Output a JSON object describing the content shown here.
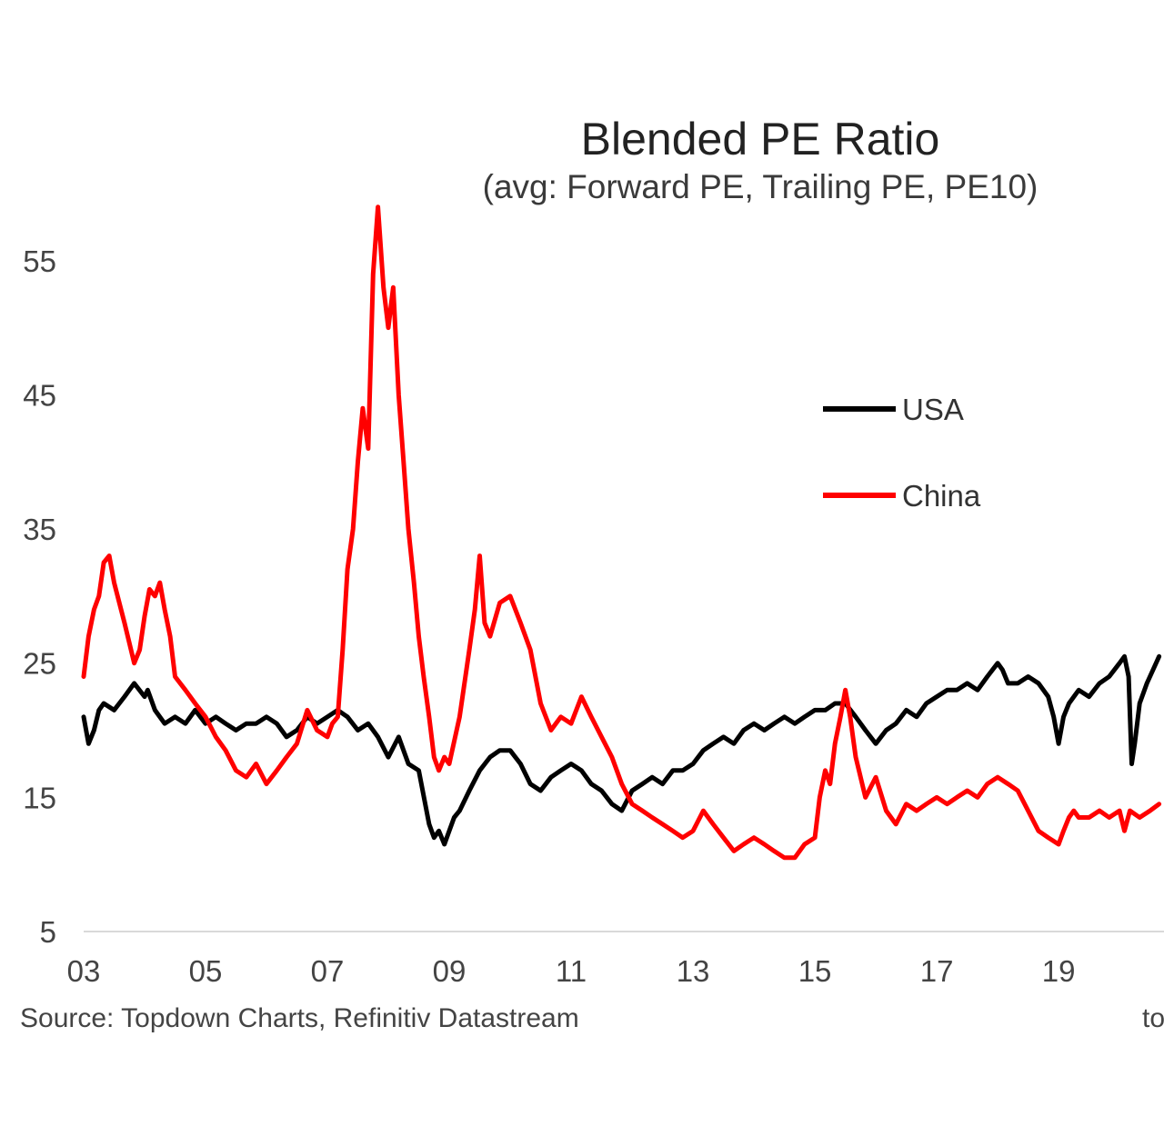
{
  "chart_data": {
    "type": "line",
    "title": "Blended PE Ratio",
    "subtitle": "(avg: Forward PE, Trailing PE, PE10)",
    "xlabel": "",
    "ylabel": "",
    "xlim": [
      2003.0,
      2020.7
    ],
    "ylim": [
      5,
      60
    ],
    "x_ticks": [
      {
        "value": 2003,
        "label": "03"
      },
      {
        "value": 2005,
        "label": "05"
      },
      {
        "value": 2007,
        "label": "07"
      },
      {
        "value": 2009,
        "label": "09"
      },
      {
        "value": 2011,
        "label": "11"
      },
      {
        "value": 2013,
        "label": "13"
      },
      {
        "value": 2015,
        "label": "15"
      },
      {
        "value": 2017,
        "label": "17"
      },
      {
        "value": 2019,
        "label": "19"
      }
    ],
    "y_ticks": [
      5,
      15,
      25,
      35,
      45,
      55
    ],
    "grid": false,
    "legend_position": "right",
    "source": "Source: Topdown Charts, Refinitiv Datastream",
    "footer_right": "to",
    "series": [
      {
        "name": "USA",
        "color": "#000000",
        "x": [
          2003.0,
          2003.08,
          2003.17,
          2003.25,
          2003.33,
          2003.5,
          2003.67,
          2003.83,
          2004.0,
          2004.05,
          2004.17,
          2004.33,
          2004.5,
          2004.67,
          2004.83,
          2005.0,
          2005.17,
          2005.33,
          2005.5,
          2005.67,
          2005.83,
          2006.0,
          2006.17,
          2006.33,
          2006.5,
          2006.67,
          2006.83,
          2007.0,
          2007.17,
          2007.33,
          2007.5,
          2007.67,
          2007.83,
          2008.0,
          2008.17,
          2008.33,
          2008.5,
          2008.67,
          2008.75,
          2008.83,
          2008.92,
          2009.0,
          2009.08,
          2009.17,
          2009.33,
          2009.5,
          2009.67,
          2009.83,
          2010.0,
          2010.17,
          2010.33,
          2010.5,
          2010.67,
          2010.83,
          2011.0,
          2011.17,
          2011.33,
          2011.5,
          2011.67,
          2011.83,
          2012.0,
          2012.17,
          2012.33,
          2012.5,
          2012.67,
          2012.83,
          2013.0,
          2013.17,
          2013.33,
          2013.5,
          2013.67,
          2013.83,
          2014.0,
          2014.17,
          2014.33,
          2014.5,
          2014.67,
          2014.83,
          2015.0,
          2015.17,
          2015.33,
          2015.5,
          2015.67,
          2015.83,
          2016.0,
          2016.17,
          2016.33,
          2016.5,
          2016.67,
          2016.83,
          2017.0,
          2017.17,
          2017.33,
          2017.5,
          2017.67,
          2017.83,
          2018.0,
          2018.08,
          2018.17,
          2018.33,
          2018.5,
          2018.67,
          2018.83,
          2018.92,
          2019.0,
          2019.08,
          2019.17,
          2019.33,
          2019.5,
          2019.67,
          2019.83,
          2020.0,
          2020.08,
          2020.15,
          2020.2,
          2020.25,
          2020.33,
          2020.45,
          2020.55,
          2020.65
        ],
        "values": [
          21.0,
          19.0,
          20.0,
          21.5,
          22.0,
          21.5,
          22.5,
          23.5,
          22.5,
          23.0,
          21.5,
          20.5,
          21.0,
          20.5,
          21.5,
          20.5,
          21.0,
          20.5,
          20.0,
          20.5,
          20.5,
          21.0,
          20.5,
          19.5,
          20.0,
          21.0,
          20.5,
          21.0,
          21.5,
          21.0,
          20.0,
          20.5,
          19.5,
          18.0,
          19.5,
          17.5,
          17.0,
          13.0,
          12.0,
          12.5,
          11.5,
          12.5,
          13.5,
          14.0,
          15.5,
          17.0,
          18.0,
          18.5,
          18.5,
          17.5,
          16.0,
          15.5,
          16.5,
          17.0,
          17.5,
          17.0,
          16.0,
          15.5,
          14.5,
          14.0,
          15.5,
          16.0,
          16.5,
          16.0,
          17.0,
          17.0,
          17.5,
          18.5,
          19.0,
          19.5,
          19.0,
          20.0,
          20.5,
          20.0,
          20.5,
          21.0,
          20.5,
          21.0,
          21.5,
          21.5,
          22.0,
          22.0,
          21.0,
          20.0,
          19.0,
          20.0,
          20.5,
          21.5,
          21.0,
          22.0,
          22.5,
          23.0,
          23.0,
          23.5,
          23.0,
          24.0,
          25.0,
          24.5,
          23.5,
          23.5,
          24.0,
          23.5,
          22.5,
          21.0,
          19.0,
          21.0,
          22.0,
          23.0,
          22.5,
          23.5,
          24.0,
          25.0,
          25.5,
          24.0,
          17.5,
          19.0,
          22.0,
          23.5,
          24.5,
          25.5
        ]
      },
      {
        "name": "China",
        "color": "#ff0000",
        "x": [
          2003.0,
          2003.08,
          2003.17,
          2003.25,
          2003.33,
          2003.42,
          2003.5,
          2003.67,
          2003.83,
          2003.92,
          2004.0,
          2004.08,
          2004.17,
          2004.25,
          2004.33,
          2004.42,
          2004.5,
          2004.67,
          2004.83,
          2005.0,
          2005.17,
          2005.33,
          2005.5,
          2005.67,
          2005.83,
          2006.0,
          2006.17,
          2006.33,
          2006.5,
          2006.67,
          2006.83,
          2007.0,
          2007.08,
          2007.17,
          2007.25,
          2007.33,
          2007.42,
          2007.5,
          2007.58,
          2007.67,
          2007.75,
          2007.83,
          2007.92,
          2008.0,
          2008.08,
          2008.17,
          2008.25,
          2008.33,
          2008.42,
          2008.5,
          2008.58,
          2008.67,
          2008.75,
          2008.83,
          2008.92,
          2009.0,
          2009.17,
          2009.33,
          2009.42,
          2009.5,
          2009.58,
          2009.67,
          2009.83,
          2010.0,
          2010.17,
          2010.33,
          2010.5,
          2010.67,
          2010.83,
          2011.0,
          2011.17,
          2011.33,
          2011.5,
          2011.67,
          2011.83,
          2012.0,
          2012.17,
          2012.33,
          2012.5,
          2012.67,
          2012.83,
          2013.0,
          2013.17,
          2013.33,
          2013.5,
          2013.67,
          2013.83,
          2014.0,
          2014.17,
          2014.33,
          2014.5,
          2014.67,
          2014.83,
          2015.0,
          2015.08,
          2015.17,
          2015.25,
          2015.33,
          2015.42,
          2015.5,
          2015.58,
          2015.67,
          2015.83,
          2016.0,
          2016.17,
          2016.33,
          2016.5,
          2016.67,
          2016.83,
          2017.0,
          2017.17,
          2017.33,
          2017.5,
          2017.67,
          2017.83,
          2018.0,
          2018.17,
          2018.33,
          2018.5,
          2018.67,
          2018.83,
          2019.0,
          2019.08,
          2019.17,
          2019.25,
          2019.33,
          2019.5,
          2019.67,
          2019.83,
          2020.0,
          2020.08,
          2020.17,
          2020.33,
          2020.5,
          2020.65
        ],
        "values": [
          24.0,
          27.0,
          29.0,
          30.0,
          32.5,
          33.0,
          31.0,
          28.0,
          25.0,
          26.0,
          28.5,
          30.5,
          30.0,
          31.0,
          29.0,
          27.0,
          24.0,
          23.0,
          22.0,
          21.0,
          19.5,
          18.5,
          17.0,
          16.5,
          17.5,
          16.0,
          17.0,
          18.0,
          19.0,
          21.5,
          20.0,
          19.5,
          20.5,
          21.0,
          26.0,
          32.0,
          35.0,
          40.0,
          44.0,
          41.0,
          54.0,
          59.0,
          53.0,
          50.0,
          53.0,
          45.0,
          40.0,
          35.0,
          31.0,
          27.0,
          24.0,
          21.0,
          18.0,
          17.0,
          18.0,
          17.5,
          21.0,
          26.0,
          29.0,
          33.0,
          28.0,
          27.0,
          29.5,
          30.0,
          28.0,
          26.0,
          22.0,
          20.0,
          21.0,
          20.5,
          22.5,
          21.0,
          19.5,
          18.0,
          16.0,
          14.5,
          14.0,
          13.5,
          13.0,
          12.5,
          12.0,
          12.5,
          14.0,
          13.0,
          12.0,
          11.0,
          11.5,
          12.0,
          11.5,
          11.0,
          10.5,
          10.5,
          11.5,
          12.0,
          15.0,
          17.0,
          16.0,
          19.0,
          21.0,
          23.0,
          21.0,
          18.0,
          15.0,
          16.5,
          14.0,
          13.0,
          14.5,
          14.0,
          14.5,
          15.0,
          14.5,
          15.0,
          15.5,
          15.0,
          16.0,
          16.5,
          16.0,
          15.5,
          14.0,
          12.5,
          12.0,
          11.5,
          12.5,
          13.5,
          14.0,
          13.5,
          13.5,
          14.0,
          13.5,
          14.0,
          12.5,
          14.0,
          13.5,
          14.0,
          14.5
        ]
      }
    ]
  }
}
